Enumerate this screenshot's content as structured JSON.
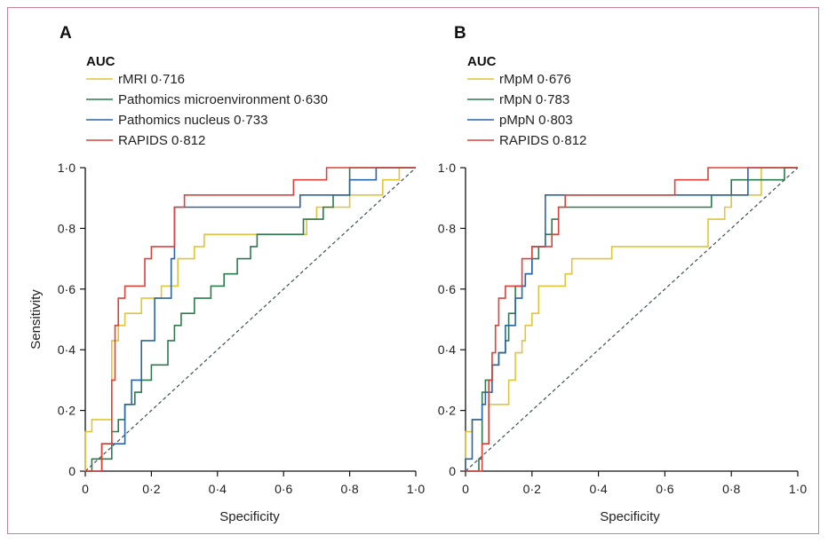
{
  "chart_data": [
    {
      "type": "line",
      "panel_label": "A",
      "legend_title": "AUC",
      "xlabel": "Specificity",
      "ylabel": "Sensitivity",
      "xlim": [
        0,
        1
      ],
      "ylim": [
        0,
        1
      ],
      "xticks": [
        "0",
        "0·2",
        "0·4",
        "0·6",
        "0·8",
        "1·0"
      ],
      "yticks": [
        "0",
        "0·2",
        "0·4",
        "0·6",
        "0·8",
        "1·0"
      ],
      "reference_diagonal": true,
      "legend_position": "top-left",
      "series": [
        {
          "name": "rMRI 0·716",
          "color": "#e0c43a",
          "x": [
            0,
            0,
            0.02,
            0.02,
            0.08,
            0.08,
            0.1,
            0.1,
            0.12,
            0.12,
            0.17,
            0.17,
            0.23,
            0.23,
            0.28,
            0.28,
            0.33,
            0.33,
            0.36,
            0.36,
            0.38,
            0.38,
            0.55,
            0.55,
            0.67,
            0.67,
            0.7,
            0.7,
            0.8,
            0.8,
            0.9,
            0.9,
            0.95,
            0.95,
            1
          ],
          "y": [
            0,
            0.13,
            0.13,
            0.17,
            0.17,
            0.43,
            0.43,
            0.48,
            0.48,
            0.52,
            0.52,
            0.57,
            0.57,
            0.61,
            0.61,
            0.7,
            0.7,
            0.74,
            0.74,
            0.78,
            0.78,
            0.78,
            0.78,
            0.78,
            0.78,
            0.83,
            0.83,
            0.87,
            0.87,
            0.91,
            0.91,
            0.96,
            0.96,
            1,
            1
          ]
        },
        {
          "name": "Pathomics microenvironment 0·630",
          "color": "#2d7a4f",
          "x": [
            0,
            0.02,
            0.02,
            0.08,
            0.08,
            0.1,
            0.1,
            0.12,
            0.12,
            0.15,
            0.15,
            0.17,
            0.17,
            0.2,
            0.2,
            0.25,
            0.25,
            0.27,
            0.27,
            0.29,
            0.29,
            0.33,
            0.33,
            0.38,
            0.38,
            0.42,
            0.42,
            0.46,
            0.46,
            0.5,
            0.5,
            0.52,
            0.52,
            0.54,
            0.54,
            0.6,
            0.6,
            0.66,
            0.66,
            0.72,
            0.72,
            0.75,
            0.75,
            0.8,
            0.8,
            1
          ],
          "y": [
            0,
            0,
            0.04,
            0.04,
            0.13,
            0.13,
            0.17,
            0.17,
            0.22,
            0.22,
            0.26,
            0.26,
            0.3,
            0.3,
            0.35,
            0.35,
            0.43,
            0.43,
            0.48,
            0.48,
            0.52,
            0.52,
            0.57,
            0.57,
            0.61,
            0.61,
            0.65,
            0.65,
            0.7,
            0.7,
            0.74,
            0.74,
            0.78,
            0.78,
            0.78,
            0.78,
            0.78,
            0.78,
            0.83,
            0.83,
            0.87,
            0.87,
            0.91,
            0.91,
            1,
            1
          ]
        },
        {
          "name": "Pathomics nucleus 0·733",
          "color": "#2a64a8",
          "x": [
            0,
            0.05,
            0.05,
            0.12,
            0.12,
            0.14,
            0.14,
            0.17,
            0.17,
            0.21,
            0.21,
            0.26,
            0.26,
            0.27,
            0.27,
            0.3,
            0.3,
            0.65,
            0.65,
            0.8,
            0.8,
            0.88,
            0.88,
            1
          ],
          "y": [
            0,
            0,
            0.09,
            0.09,
            0.22,
            0.22,
            0.3,
            0.3,
            0.43,
            0.43,
            0.57,
            0.57,
            0.7,
            0.7,
            0.87,
            0.87,
            0.87,
            0.87,
            0.91,
            0.91,
            0.96,
            0.96,
            1,
            1
          ]
        },
        {
          "name": "RAPIDS 0·812",
          "color": "#d9433a",
          "x": [
            0,
            0.05,
            0.05,
            0.08,
            0.08,
            0.09,
            0.09,
            0.1,
            0.1,
            0.12,
            0.12,
            0.13,
            0.13,
            0.18,
            0.18,
            0.2,
            0.2,
            0.21,
            0.21,
            0.27,
            0.27,
            0.28,
            0.28,
            0.3,
            0.3,
            0.63,
            0.63,
            0.7,
            0.7,
            0.73,
            0.73,
            1
          ],
          "y": [
            0,
            0,
            0.09,
            0.09,
            0.3,
            0.3,
            0.48,
            0.48,
            0.57,
            0.57,
            0.61,
            0.61,
            0.61,
            0.61,
            0.7,
            0.7,
            0.74,
            0.74,
            0.74,
            0.74,
            0.87,
            0.87,
            0.87,
            0.87,
            0.91,
            0.91,
            0.96,
            0.96,
            0.96,
            0.96,
            1,
            1
          ]
        }
      ]
    },
    {
      "type": "line",
      "panel_label": "B",
      "legend_title": "AUC",
      "xlabel": "Specificity",
      "ylabel": "",
      "xlim": [
        0,
        1
      ],
      "ylim": [
        0,
        1
      ],
      "xticks": [
        "0",
        "0·2",
        "0·4",
        "0·6",
        "0·8",
        "1·0"
      ],
      "yticks": [
        "0",
        "0·2",
        "0·4",
        "0·6",
        "0·8",
        "1·0"
      ],
      "reference_diagonal": true,
      "legend_position": "top-left",
      "series": [
        {
          "name": "rMpM 0·676",
          "color": "#e0c43a",
          "x": [
            0,
            0,
            0.02,
            0.02,
            0.05,
            0.05,
            0.07,
            0.07,
            0.12,
            0.12,
            0.13,
            0.13,
            0.15,
            0.15,
            0.17,
            0.17,
            0.18,
            0.18,
            0.2,
            0.2,
            0.22,
            0.22,
            0.3,
            0.3,
            0.32,
            0.32,
            0.44,
            0.44,
            0.73,
            0.73,
            0.78,
            0.78,
            0.8,
            0.8,
            0.82,
            0.82,
            0.89,
            0.89,
            1
          ],
          "y": [
            0,
            0.13,
            0.13,
            0.17,
            0.17,
            0.09,
            0.09,
            0.22,
            0.22,
            0.22,
            0.22,
            0.3,
            0.3,
            0.39,
            0.39,
            0.43,
            0.43,
            0.48,
            0.48,
            0.52,
            0.52,
            0.61,
            0.61,
            0.65,
            0.65,
            0.7,
            0.7,
            0.74,
            0.74,
            0.83,
            0.83,
            0.87,
            0.87,
            0.91,
            0.91,
            0.91,
            0.91,
            1,
            1
          ]
        },
        {
          "name": "rMpN 0·783",
          "color": "#2d7a4f",
          "x": [
            0,
            0.04,
            0.04,
            0.05,
            0.05,
            0.06,
            0.06,
            0.08,
            0.08,
            0.1,
            0.1,
            0.12,
            0.12,
            0.13,
            0.13,
            0.15,
            0.15,
            0.18,
            0.18,
            0.2,
            0.2,
            0.22,
            0.22,
            0.24,
            0.24,
            0.26,
            0.26,
            0.28,
            0.28,
            0.74,
            0.74,
            0.8,
            0.8,
            0.83,
            0.83,
            0.96,
            0.96,
            1
          ],
          "y": [
            0,
            0,
            0.04,
            0.04,
            0.26,
            0.26,
            0.3,
            0.3,
            0.35,
            0.35,
            0.39,
            0.39,
            0.43,
            0.43,
            0.52,
            0.52,
            0.61,
            0.61,
            0.65,
            0.65,
            0.7,
            0.7,
            0.74,
            0.74,
            0.78,
            0.78,
            0.83,
            0.83,
            0.87,
            0.87,
            0.91,
            0.91,
            0.96,
            0.96,
            0.96,
            0.96,
            1,
            1
          ]
        },
        {
          "name": "pMpN 0·803",
          "color": "#2a64a8",
          "x": [
            0,
            0,
            0.02,
            0.02,
            0.05,
            0.05,
            0.06,
            0.06,
            0.08,
            0.08,
            0.1,
            0.1,
            0.12,
            0.12,
            0.15,
            0.15,
            0.17,
            0.17,
            0.18,
            0.18,
            0.2,
            0.2,
            0.24,
            0.24,
            0.3,
            0.3,
            0.85,
            0.85,
            1
          ],
          "y": [
            0,
            0.04,
            0.04,
            0.17,
            0.17,
            0.22,
            0.22,
            0.26,
            0.26,
            0.35,
            0.35,
            0.39,
            0.39,
            0.48,
            0.48,
            0.57,
            0.57,
            0.61,
            0.61,
            0.65,
            0.65,
            0.74,
            0.74,
            0.91,
            0.91,
            0.91,
            0.91,
            1,
            1
          ]
        },
        {
          "name": "RAPIDS 0·812",
          "color": "#d9433a",
          "x": [
            0,
            0.05,
            0.05,
            0.07,
            0.07,
            0.08,
            0.08,
            0.09,
            0.09,
            0.1,
            0.1,
            0.12,
            0.12,
            0.17,
            0.17,
            0.18,
            0.18,
            0.2,
            0.2,
            0.26,
            0.26,
            0.28,
            0.28,
            0.3,
            0.3,
            0.63,
            0.63,
            0.73,
            0.73,
            1
          ],
          "y": [
            0,
            0,
            0.09,
            0.09,
            0.3,
            0.3,
            0.39,
            0.39,
            0.48,
            0.48,
            0.57,
            0.57,
            0.61,
            0.61,
            0.7,
            0.7,
            0.7,
            0.7,
            0.74,
            0.74,
            0.78,
            0.78,
            0.87,
            0.87,
            0.91,
            0.91,
            0.96,
            0.96,
            1,
            1
          ]
        }
      ]
    }
  ]
}
